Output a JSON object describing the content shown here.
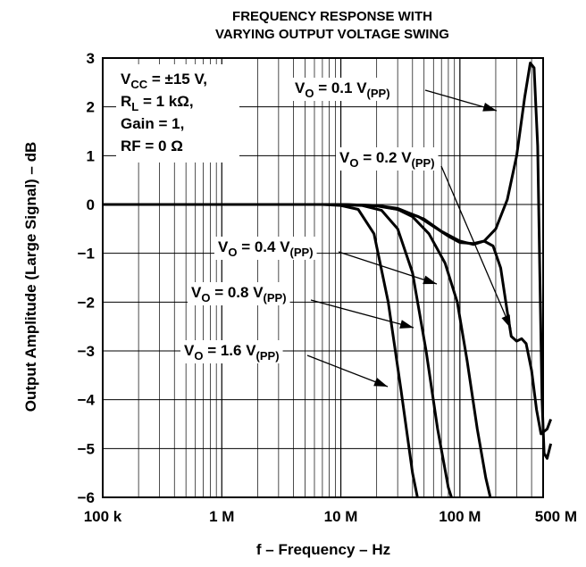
{
  "chart_data": {
    "type": "line",
    "title": [
      "FREQUENCY RESPONSE WITH",
      "VARYING OUTPUT VOLTAGE SWING"
    ],
    "xlabel": "f – Frequency – Hz",
    "ylabel": "Output Amplitude (Large Signal) – dB",
    "x_scale": "log",
    "xlim": [
      100000,
      500000000
    ],
    "ylim": [
      -6,
      3
    ],
    "grid": true,
    "x_ticks": [
      {
        "value": 100000,
        "label": "100 k"
      },
      {
        "value": 1000000,
        "label": "1 M"
      },
      {
        "value": 10000000,
        "label": "10 M"
      },
      {
        "value": 100000000,
        "label": "100 M"
      },
      {
        "value": 500000000,
        "label": "500 M"
      }
    ],
    "y_ticks": [
      {
        "value": 3,
        "label": "3"
      },
      {
        "value": 2,
        "label": "2"
      },
      {
        "value": 1,
        "label": "1"
      },
      {
        "value": 0,
        "label": "0"
      },
      {
        "value": -1,
        "label": "−1"
      },
      {
        "value": -2,
        "label": "−2"
      },
      {
        "value": -3,
        "label": "−3"
      },
      {
        "value": -4,
        "label": "−4"
      },
      {
        "value": -5,
        "label": "−5"
      },
      {
        "value": -6,
        "label": "−6"
      }
    ],
    "conditions": [
      {
        "main": "V",
        "sub": "CC",
        "rest": " = ±15 V,"
      },
      {
        "main": "R",
        "sub": "L",
        "rest": " = 1 kΩ,"
      },
      {
        "main": "Gain = 1,",
        "sub": "",
        "rest": ""
      },
      {
        "main": "RF = 0 Ω",
        "sub": "",
        "rest": ""
      }
    ],
    "series": [
      {
        "label_main": "V",
        "label_sub1": "O",
        "label_mid": " = 0.1 V",
        "label_sub2": "(PP)",
        "points": [
          [
            100000,
            0
          ],
          [
            10000000,
            0
          ],
          [
            20000000,
            -0.02
          ],
          [
            30000000,
            -0.08
          ],
          [
            50000000,
            -0.3
          ],
          [
            70000000,
            -0.55
          ],
          [
            100000000,
            -0.75
          ],
          [
            130000000,
            -0.82
          ],
          [
            160000000,
            -0.75
          ],
          [
            200000000,
            -0.5
          ],
          [
            250000000,
            0.1
          ],
          [
            300000000,
            1.0
          ],
          [
            350000000,
            2.2
          ],
          [
            390000000,
            2.9
          ],
          [
            420000000,
            2.8
          ],
          [
            450000000,
            1.2
          ],
          [
            470000000,
            -1.5
          ],
          [
            490000000,
            -4.0
          ],
          [
            510000000,
            -5.1
          ],
          [
            540000000,
            -5.2
          ],
          [
            580000000,
            -4.9
          ]
        ]
      },
      {
        "label_main": "V",
        "label_sub1": "O",
        "label_mid": " = 0.2 V",
        "label_sub2": "(PP)",
        "points": [
          [
            100000,
            0
          ],
          [
            10000000,
            0
          ],
          [
            20000000,
            -0.03
          ],
          [
            30000000,
            -0.1
          ],
          [
            45000000,
            -0.25
          ],
          [
            60000000,
            -0.45
          ],
          [
            80000000,
            -0.65
          ],
          [
            100000000,
            -0.78
          ],
          [
            130000000,
            -0.8
          ],
          [
            160000000,
            -0.75
          ],
          [
            190000000,
            -0.85
          ],
          [
            220000000,
            -1.3
          ],
          [
            250000000,
            -2.2
          ],
          [
            270000000,
            -2.7
          ],
          [
            300000000,
            -2.8
          ],
          [
            330000000,
            -2.75
          ],
          [
            360000000,
            -2.85
          ],
          [
            400000000,
            -3.4
          ],
          [
            440000000,
            -4.2
          ],
          [
            480000000,
            -4.7
          ],
          [
            540000000,
            -4.6
          ],
          [
            580000000,
            -4.4
          ]
        ]
      },
      {
        "label_main": "V",
        "label_sub1": "O",
        "label_mid": " = 0.4 V",
        "label_sub2": "(PP)",
        "points": [
          [
            100000,
            0
          ],
          [
            10000000,
            0
          ],
          [
            20000000,
            -0.02
          ],
          [
            30000000,
            -0.1
          ],
          [
            40000000,
            -0.25
          ],
          [
            55000000,
            -0.6
          ],
          [
            75000000,
            -1.2
          ],
          [
            95000000,
            -2.0
          ],
          [
            115000000,
            -3.2
          ],
          [
            140000000,
            -4.6
          ],
          [
            165000000,
            -5.6
          ],
          [
            180000000,
            -6.0
          ]
        ]
      },
      {
        "label_main": "V",
        "label_sub1": "O",
        "label_mid": " = 0.8 V",
        "label_sub2": "(PP)",
        "points": [
          [
            100000,
            0
          ],
          [
            9000000,
            0
          ],
          [
            15000000,
            -0.02
          ],
          [
            22000000,
            -0.12
          ],
          [
            30000000,
            -0.5
          ],
          [
            40000000,
            -1.4
          ],
          [
            52000000,
            -3.0
          ],
          [
            65000000,
            -4.6
          ],
          [
            80000000,
            -5.8
          ],
          [
            85000000,
            -6.0
          ]
        ]
      },
      {
        "label_main": "V",
        "label_sub1": "O",
        "label_mid": " = 1.6 V",
        "label_sub2": "(PP)",
        "points": [
          [
            100000,
            0
          ],
          [
            7000000,
            0
          ],
          [
            10000000,
            -0.02
          ],
          [
            14000000,
            -0.1
          ],
          [
            19000000,
            -0.6
          ],
          [
            25000000,
            -2.0
          ],
          [
            32000000,
            -3.8
          ],
          [
            40000000,
            -5.5
          ],
          [
            44000000,
            -6.0
          ]
        ]
      }
    ]
  }
}
